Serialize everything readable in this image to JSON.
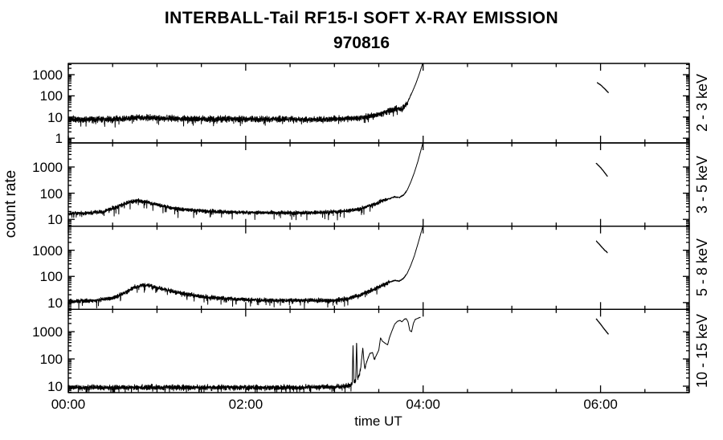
{
  "chart_data": {
    "type": "line",
    "title": "INTERBALL-Tail RF15-I SOFT X-RAY EMISSION",
    "subtitle": "970816",
    "xlabel": "time UT",
    "ylabel": "count rate",
    "x_unit": "hours UT",
    "xlim": [
      0,
      7
    ],
    "xtick_hours": [
      0,
      2,
      4,
      6
    ],
    "xtick_labels": [
      "00:00",
      "02:00",
      "04:00",
      "06:00"
    ],
    "minor_xtick_hours": 0.5,
    "grid": false,
    "legend": "none",
    "line_color": "#000000",
    "background_color": "#ffffff",
    "panels": [
      {
        "label": "2 - 3 keV",
        "yscale": "log",
        "ylim": [
          0.6,
          3400
        ],
        "ytick_values": [
          1,
          10,
          100,
          1000
        ],
        "ytick_labels": [
          "1",
          "10",
          "100",
          "1000"
        ],
        "noise_decades": 0.2,
        "seed": 11,
        "series_keyframes": [
          [
            0,
            8
          ],
          [
            0.5,
            8
          ],
          [
            0.8,
            9.5
          ],
          [
            1.0,
            9
          ],
          [
            1.5,
            8
          ],
          [
            2.0,
            8
          ],
          [
            2.5,
            8
          ],
          [
            2.8,
            7.5
          ],
          [
            3.0,
            8
          ],
          [
            3.2,
            8.5
          ],
          [
            3.35,
            10
          ],
          [
            3.5,
            13
          ],
          [
            3.6,
            18
          ],
          [
            3.68,
            24
          ],
          [
            3.72,
            26
          ],
          [
            3.76,
            24
          ],
          [
            3.8,
            35
          ],
          [
            3.84,
            70
          ],
          [
            3.88,
            160
          ],
          [
            3.92,
            400
          ],
          [
            3.96,
            1200
          ],
          [
            4.0,
            4000
          ]
        ],
        "detached_segment": [
          [
            5.96,
            430
          ],
          [
            6.0,
            330
          ],
          [
            6.04,
            230
          ],
          [
            6.09,
            140
          ]
        ]
      },
      {
        "label": "3 - 5 keV",
        "yscale": "log",
        "ylim": [
          5.5,
          8300
        ],
        "ytick_values": [
          10,
          100,
          1000
        ],
        "ytick_labels": [
          "10",
          "100",
          "1000"
        ],
        "noise_decades": 0.1,
        "seed": 22,
        "series_keyframes": [
          [
            0,
            17
          ],
          [
            0.2,
            17
          ],
          [
            0.4,
            20
          ],
          [
            0.55,
            30
          ],
          [
            0.68,
            45
          ],
          [
            0.78,
            52
          ],
          [
            0.9,
            45
          ],
          [
            1.05,
            33
          ],
          [
            1.25,
            25
          ],
          [
            1.5,
            21
          ],
          [
            1.8,
            19
          ],
          [
            2.2,
            18
          ],
          [
            2.6,
            18
          ],
          [
            3.0,
            19
          ],
          [
            3.15,
            21
          ],
          [
            3.3,
            26
          ],
          [
            3.45,
            38
          ],
          [
            3.55,
            52
          ],
          [
            3.62,
            62
          ],
          [
            3.68,
            72
          ],
          [
            3.73,
            68
          ],
          [
            3.78,
            85
          ],
          [
            3.82,
            130
          ],
          [
            3.86,
            260
          ],
          [
            3.9,
            600
          ],
          [
            3.94,
            1600
          ],
          [
            4.0,
            9000
          ]
        ],
        "detached_segment": [
          [
            5.95,
            1400
          ],
          [
            6.0,
            950
          ],
          [
            6.04,
            650
          ],
          [
            6.08,
            430
          ]
        ]
      },
      {
        "label": "5 - 8 keV",
        "yscale": "log",
        "ylim": [
          5.5,
          8300
        ],
        "ytick_values": [
          10,
          100,
          1000
        ],
        "ytick_labels": [
          "10",
          "100",
          "1000"
        ],
        "noise_decades": 0.11,
        "seed": 33,
        "series_keyframes": [
          [
            0,
            11
          ],
          [
            0.3,
            12
          ],
          [
            0.5,
            15
          ],
          [
            0.65,
            25
          ],
          [
            0.75,
            38
          ],
          [
            0.85,
            47
          ],
          [
            0.95,
            42
          ],
          [
            1.1,
            30
          ],
          [
            1.3,
            22
          ],
          [
            1.5,
            17
          ],
          [
            1.8,
            14
          ],
          [
            2.2,
            12
          ],
          [
            2.6,
            12
          ],
          [
            3.0,
            12
          ],
          [
            3.15,
            14
          ],
          [
            3.3,
            20
          ],
          [
            3.45,
            32
          ],
          [
            3.55,
            48
          ],
          [
            3.62,
            60
          ],
          [
            3.68,
            70
          ],
          [
            3.73,
            66
          ],
          [
            3.78,
            85
          ],
          [
            3.82,
            130
          ],
          [
            3.86,
            260
          ],
          [
            3.9,
            600
          ],
          [
            3.94,
            1700
          ],
          [
            4.0,
            9000
          ]
        ],
        "detached_segment": [
          [
            5.95,
            2300
          ],
          [
            6.0,
            1500
          ],
          [
            6.04,
            1050
          ],
          [
            6.08,
            800
          ]
        ]
      },
      {
        "label": "10 - 15 keV",
        "yscale": "log",
        "ylim": [
          5.8,
          6600
        ],
        "ytick_values": [
          10,
          100,
          1000
        ],
        "ytick_labels": [
          "10",
          "100",
          "1000"
        ],
        "noise_decades": 0.13,
        "seed": 44,
        "series_keyframes": [
          [
            0,
            9
          ],
          [
            0.5,
            9
          ],
          [
            1.0,
            9
          ],
          [
            1.5,
            9
          ],
          [
            2.0,
            9
          ],
          [
            2.5,
            9
          ],
          [
            3.0,
            9.5
          ],
          [
            3.1,
            10
          ],
          [
            3.17,
            11
          ],
          [
            3.2,
            12
          ],
          [
            3.21,
            350
          ],
          [
            3.22,
            14
          ],
          [
            3.24,
            16
          ],
          [
            3.25,
            480
          ],
          [
            3.26,
            18
          ],
          [
            3.28,
            25
          ],
          [
            3.3,
            60
          ],
          [
            3.32,
            260
          ],
          [
            3.34,
            45
          ],
          [
            3.37,
            90
          ],
          [
            3.4,
            160
          ],
          [
            3.43,
            170
          ],
          [
            3.45,
            95
          ],
          [
            3.47,
            130
          ],
          [
            3.5,
            210
          ],
          [
            3.52,
            600
          ],
          [
            3.54,
            450
          ],
          [
            3.57,
            380
          ],
          [
            3.6,
            330
          ],
          [
            3.62,
            600
          ],
          [
            3.65,
            1100
          ],
          [
            3.68,
            1900
          ],
          [
            3.71,
            2400
          ],
          [
            3.74,
            2600
          ],
          [
            3.76,
            2300
          ],
          [
            3.79,
            2900
          ],
          [
            3.81,
            3000
          ],
          [
            3.83,
            2300
          ],
          [
            3.85,
            1100
          ],
          [
            3.87,
            1000
          ],
          [
            3.89,
            2000
          ],
          [
            3.91,
            2800
          ],
          [
            3.93,
            3000
          ],
          [
            3.95,
            3200
          ],
          [
            3.97,
            3400
          ]
        ],
        "detached_segment": [
          [
            5.95,
            3000
          ],
          [
            6.0,
            1900
          ],
          [
            6.05,
            1150
          ],
          [
            6.09,
            800
          ]
        ]
      }
    ]
  }
}
